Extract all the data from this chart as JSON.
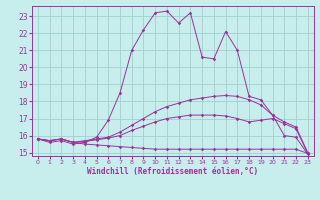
{
  "xlabel": "Windchill (Refroidissement éolien,°C)",
  "ylabel": "",
  "xlim": [
    -0.5,
    23.5
  ],
  "ylim": [
    14.8,
    23.6
  ],
  "yticks": [
    15,
    16,
    17,
    18,
    19,
    20,
    21,
    22,
    23
  ],
  "xticks": [
    0,
    1,
    2,
    3,
    4,
    5,
    6,
    7,
    8,
    9,
    10,
    11,
    12,
    13,
    14,
    15,
    16,
    17,
    18,
    19,
    20,
    21,
    22,
    23
  ],
  "background_color": "#c8eded",
  "line_color": "#993399",
  "grid_color": "#a0d0d0",
  "lines": [
    {
      "x": [
        0,
        1,
        2,
        3,
        4,
        5,
        6,
        7,
        8,
        9,
        10,
        11,
        12,
        13,
        14,
        15,
        16,
        17,
        18,
        19,
        20,
        21,
        22,
        23
      ],
      "y": [
        15.8,
        15.6,
        15.7,
        15.5,
        15.6,
        15.9,
        16.9,
        18.5,
        21.0,
        22.2,
        23.2,
        23.3,
        22.6,
        23.2,
        20.6,
        20.5,
        22.1,
        21.0,
        18.3,
        18.1,
        17.2,
        16.0,
        15.9,
        14.9
      ]
    },
    {
      "x": [
        0,
        1,
        2,
        3,
        4,
        5,
        6,
        7,
        8,
        9,
        10,
        11,
        12,
        13,
        14,
        15,
        16,
        17,
        18,
        19,
        20,
        21,
        22,
        23
      ],
      "y": [
        15.8,
        15.7,
        15.8,
        15.6,
        15.7,
        15.8,
        15.9,
        16.2,
        16.6,
        17.0,
        17.4,
        17.7,
        17.9,
        18.1,
        18.2,
        18.3,
        18.35,
        18.3,
        18.1,
        17.8,
        17.2,
        16.8,
        16.5,
        15.0
      ]
    },
    {
      "x": [
        0,
        1,
        2,
        3,
        4,
        5,
        6,
        7,
        8,
        9,
        10,
        11,
        12,
        13,
        14,
        15,
        16,
        17,
        18,
        19,
        20,
        21,
        22,
        23
      ],
      "y": [
        15.8,
        15.7,
        15.8,
        15.6,
        15.65,
        15.75,
        15.85,
        16.0,
        16.3,
        16.55,
        16.8,
        17.0,
        17.1,
        17.2,
        17.2,
        17.2,
        17.15,
        17.0,
        16.8,
        16.9,
        17.0,
        16.7,
        16.4,
        14.95
      ]
    },
    {
      "x": [
        0,
        1,
        2,
        3,
        4,
        5,
        6,
        7,
        8,
        9,
        10,
        11,
        12,
        13,
        14,
        15,
        16,
        17,
        18,
        19,
        20,
        21,
        22,
        23
      ],
      "y": [
        15.8,
        15.7,
        15.8,
        15.6,
        15.5,
        15.45,
        15.4,
        15.35,
        15.3,
        15.25,
        15.2,
        15.2,
        15.2,
        15.2,
        15.2,
        15.2,
        15.2,
        15.2,
        15.2,
        15.2,
        15.2,
        15.2,
        15.2,
        14.95
      ]
    }
  ]
}
